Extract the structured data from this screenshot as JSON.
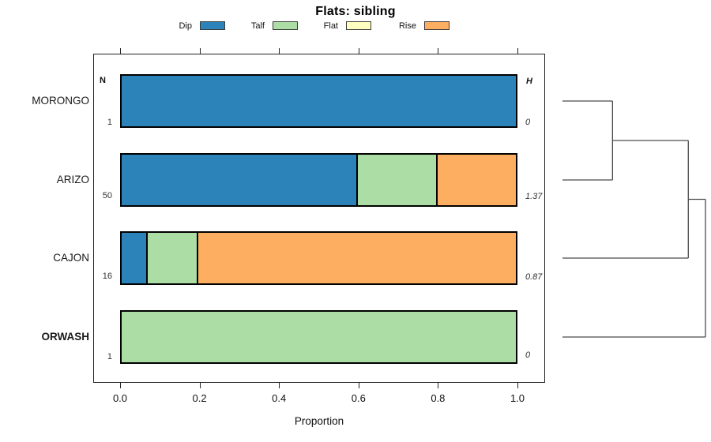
{
  "title": "Flats: sibling",
  "legend": {
    "items": [
      {
        "label": "Dip",
        "color": "#2B83BA"
      },
      {
        "label": "Talf",
        "color": "#ABDDA4"
      },
      {
        "label": "Flat",
        "color": "#FFFFBF"
      },
      {
        "label": "Rise",
        "color": "#FDAE61"
      }
    ]
  },
  "chart_data": {
    "type": "bar",
    "orientation": "horizontal",
    "stacked": true,
    "title": "Flats: sibling",
    "xlabel": "Proportion",
    "xlim": [
      0,
      1
    ],
    "x_ticks": [
      0.0,
      0.2,
      0.4,
      0.6,
      0.8,
      1.0
    ],
    "categories": [
      "MORONGO",
      "ARIZO",
      "CAJON",
      "ORWASH"
    ],
    "bold_categories": [
      "ORWASH"
    ],
    "series": [
      {
        "name": "Dip",
        "color": "#2B83BA",
        "values": [
          1.0,
          0.6,
          0.0625,
          0.0
        ]
      },
      {
        "name": "Talf",
        "color": "#ABDDA4",
        "values": [
          0.0,
          0.2,
          0.125,
          1.0
        ]
      },
      {
        "name": "Flat",
        "color": "#FFFFBF",
        "values": [
          0.0,
          0.0,
          0.0,
          0.0
        ]
      },
      {
        "name": "Rise",
        "color": "#FDAE61",
        "values": [
          0.0,
          0.2,
          0.8125,
          0.0
        ]
      }
    ],
    "n_column": {
      "header": "N",
      "values": [
        "1",
        "50",
        "16",
        "1"
      ]
    },
    "h_column": {
      "header": "H",
      "values": [
        "0",
        "1.37",
        "0.87",
        "0"
      ]
    },
    "dendrogram": {
      "leaves": [
        "MORONGO",
        "ARIZO",
        "CAJON",
        "ORWASH"
      ],
      "merges": [
        {
          "a": 0,
          "b": 1,
          "height": 0.35
        },
        {
          "a": 4,
          "b": 2,
          "height": 0.88
        },
        {
          "a": 5,
          "b": 3,
          "height": 1.0
        }
      ]
    }
  }
}
